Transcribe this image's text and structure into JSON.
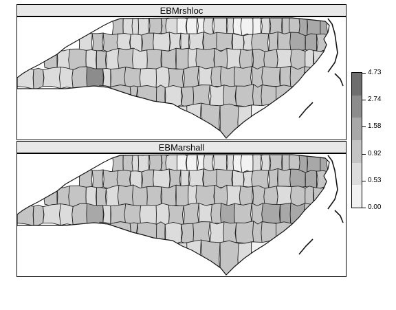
{
  "panels": [
    {
      "title": "EBMrshloc",
      "county_levels": [
        2,
        1,
        1,
        1,
        2,
        2,
        1,
        0,
        0,
        0,
        1,
        1,
        1,
        0,
        0,
        0,
        1,
        2,
        2,
        2,
        3,
        3,
        3,
        1,
        2,
        2,
        1,
        1,
        2,
        1,
        1,
        1,
        1,
        2,
        2,
        1,
        1,
        2,
        2,
        2,
        3,
        3,
        2,
        2,
        1,
        2,
        1,
        2,
        1,
        2,
        1,
        2,
        2,
        2,
        1,
        2,
        2,
        1,
        2,
        2,
        2,
        1,
        2,
        1,
        1,
        1,
        2,
        1,
        1,
        2,
        4,
        1,
        2,
        2,
        1,
        1,
        2,
        2,
        1,
        2,
        2,
        2,
        2,
        2,
        2,
        2,
        2,
        2,
        2,
        2,
        2,
        2,
        1,
        2,
        2,
        1,
        2,
        2,
        2,
        2,
        2
      ]
    },
    {
      "title": "EBMarshall",
      "county_levels": [
        2,
        2,
        1,
        1,
        2,
        2,
        1,
        0,
        0,
        0,
        1,
        1,
        1,
        0,
        0,
        1,
        1,
        2,
        2,
        2,
        3,
        3,
        3,
        2,
        2,
        2,
        2,
        1,
        2,
        1,
        2,
        1,
        1,
        2,
        2,
        1,
        1,
        2,
        2,
        2,
        3,
        3,
        2,
        2,
        2,
        2,
        1,
        2,
        1,
        2,
        2,
        2,
        2,
        2,
        1,
        2,
        2,
        1,
        2,
        2,
        2,
        1,
        2,
        2,
        2,
        2,
        2,
        1,
        1,
        2,
        3,
        1,
        2,
        2,
        1,
        1,
        2,
        2,
        1,
        2,
        3,
        2,
        2,
        3,
        3,
        3,
        2,
        2,
        2,
        2,
        2,
        2,
        1,
        2,
        2,
        1,
        2,
        2,
        2,
        2,
        2
      ]
    }
  ],
  "legend": {
    "breaks": [
      "4.73",
      "2.74",
      "1.58",
      "0.92",
      "0.53",
      "0.00"
    ],
    "colors": [
      "#f2f2f2",
      "#dcdcdc",
      "#c4c4c4",
      "#a8a8a8",
      "#8c8c8c",
      "#6e6e6e"
    ]
  }
}
